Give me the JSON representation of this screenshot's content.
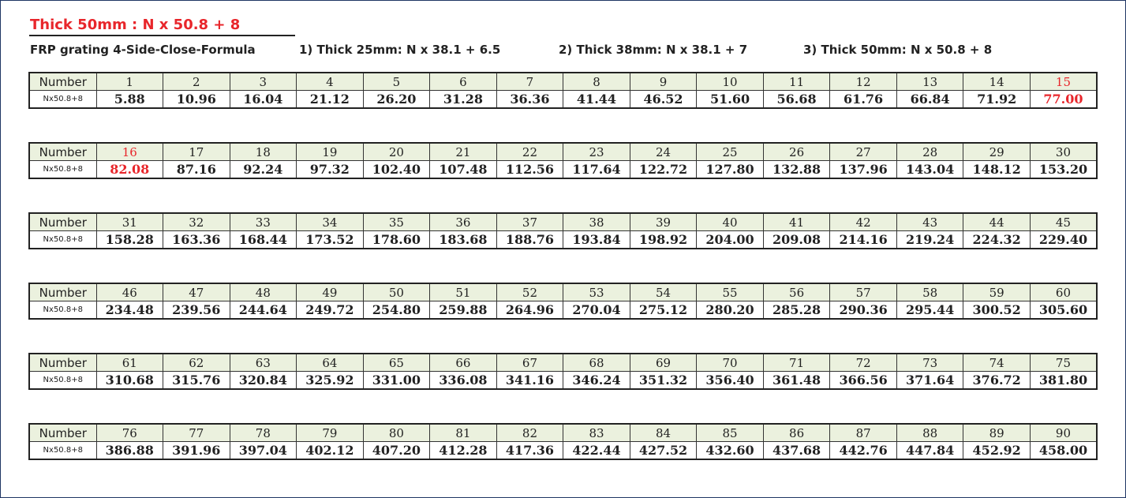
{
  "header": {
    "title": "Thick 50mm : N x 50.8 + 8",
    "formulas": [
      "FRP grating 4-Side-Close-Formula",
      "1) Thick 25mm: N x 38.1 + 6.5",
      "2) Thick 38mm: N x 38.1 + 7",
      "3) Thick 50mm: N x 50.8 + 8"
    ]
  },
  "blocks": [
    {
      "header_label": "Number",
      "row_label": "Nx50.8+8",
      "numbers": [
        "1",
        "2",
        "3",
        "4",
        "5",
        "6",
        "7",
        "8",
        "9",
        "10",
        "11",
        "12",
        "13",
        "14",
        {
          "text": "15",
          "color": "#e8262b"
        }
      ],
      "values": [
        "5.88",
        "10.96",
        "16.04",
        "21.12",
        "26.20",
        "31.28",
        "36.36",
        "41.44",
        "46.52",
        "51.60",
        "56.68",
        "61.76",
        "66.84",
        "71.92",
        {
          "text": "77.00",
          "color": "#e8262b"
        }
      ]
    },
    {
      "header_label": "Number",
      "row_label": "Nx50.8+8",
      "numbers": [
        {
          "text": "16",
          "color": "#e8262b"
        },
        "17",
        "18",
        "19",
        "20",
        "21",
        "22",
        "23",
        "24",
        "25",
        "26",
        "27",
        "28",
        "29",
        "30"
      ],
      "values": [
        {
          "text": "82.08",
          "color": "#e8262b"
        },
        "87.16",
        "92.24",
        "97.32",
        "102.40",
        "107.48",
        "112.56",
        "117.64",
        "122.72",
        "127.80",
        "132.88",
        "137.96",
        "143.04",
        "148.12",
        "153.20"
      ]
    },
    {
      "header_label": "Number",
      "row_label": "Nx50.8+8",
      "numbers": [
        "31",
        "32",
        "33",
        "34",
        "35",
        "36",
        "37",
        "38",
        "39",
        "40",
        "41",
        "42",
        "43",
        "44",
        "45"
      ],
      "values": [
        "158.28",
        "163.36",
        "168.44",
        "173.52",
        "178.60",
        "183.68",
        "188.76",
        "193.84",
        "198.92",
        "204.00",
        "209.08",
        "214.16",
        "219.24",
        "224.32",
        "229.40"
      ]
    },
    {
      "header_label": "Number",
      "row_label": "Nx50.8+8",
      "numbers": [
        "46",
        "47",
        "48",
        "49",
        "50",
        "51",
        "52",
        "53",
        "54",
        "55",
        "56",
        "57",
        "58",
        "59",
        "60"
      ],
      "values": [
        "234.48",
        "239.56",
        "244.64",
        "249.72",
        "254.80",
        "259.88",
        "264.96",
        "270.04",
        "275.12",
        "280.20",
        "285.28",
        "290.36",
        "295.44",
        "300.52",
        "305.60"
      ]
    },
    {
      "header_label": "Number",
      "row_label": "Nx50.8+8",
      "numbers": [
        "61",
        "62",
        "63",
        "64",
        "65",
        "66",
        "67",
        "68",
        "69",
        "70",
        "71",
        "72",
        "73",
        "74",
        "75"
      ],
      "values": [
        "310.68",
        "315.76",
        "320.84",
        "325.92",
        "331.00",
        "336.08",
        "341.16",
        "346.24",
        "351.32",
        "356.40",
        "361.48",
        "366.56",
        "371.64",
        "376.72",
        "381.80"
      ]
    },
    {
      "header_label": "Number",
      "row_label": "Nx50.8+8",
      "numbers": [
        "76",
        "77",
        "78",
        "79",
        "80",
        "81",
        "82",
        "83",
        "84",
        "85",
        "86",
        "87",
        "88",
        "89",
        "90"
      ],
      "values": [
        "386.88",
        "391.96",
        "397.04",
        "402.12",
        "407.20",
        "412.28",
        "417.36",
        "422.44",
        "427.52",
        "432.60",
        "437.68",
        "442.76",
        "447.84",
        "452.92",
        "458.00"
      ]
    }
  ]
}
